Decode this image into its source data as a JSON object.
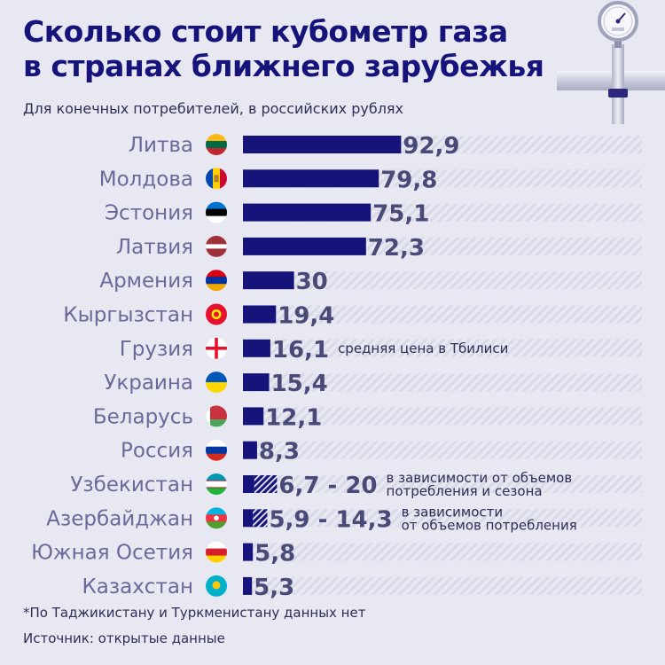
{
  "header": {
    "title_line1": "Сколько стоит кубометр газа",
    "title_line2": "в странах ближнего зарубежья",
    "subtitle": "Для конечных потребителей, в российских рублях"
  },
  "footnote": "*По Таджикистану и Туркменистану данных нет",
  "source": "Источник: открытые данные",
  "colors": {
    "bar": "#16147a",
    "country_label": "#6a6a9a",
    "value_label": "#4a4a78",
    "note_text": "#2e2e55",
    "track_stripe": "#d9dae8",
    "background": "#e7e8f2"
  },
  "chart_data": {
    "type": "bar",
    "orientation": "horizontal",
    "xlim": [
      0,
      100
    ],
    "grid": false,
    "rows": [
      {
        "category": "Литва",
        "flag": "lithuania-flag",
        "value": 92.9,
        "label": "92,9",
        "note": []
      },
      {
        "category": "Молдова",
        "flag": "moldova-flag",
        "value": 79.8,
        "label": "79,8",
        "note": []
      },
      {
        "category": "Эстония",
        "flag": "estonia-flag",
        "value": 75.1,
        "label": "75,1",
        "note": []
      },
      {
        "category": "Латвия",
        "flag": "latvia-flag",
        "value": 72.3,
        "label": "72,3",
        "note": []
      },
      {
        "category": "Армения",
        "flag": "armenia-flag",
        "value": 30,
        "label": "30",
        "note": []
      },
      {
        "category": "Кыргызстан",
        "flag": "kyrgyzstan-flag",
        "value": 19.4,
        "label": "19,4",
        "note": []
      },
      {
        "category": "Грузия",
        "flag": "georgia-flag",
        "value": 16.1,
        "label": "16,1",
        "note": [
          "средняя цена в Тбилиси"
        ]
      },
      {
        "category": "Украина",
        "flag": "ukraine-flag",
        "value": 15.4,
        "label": "15,4",
        "note": []
      },
      {
        "category": "Беларусь",
        "flag": "belarus-flag",
        "value": 12.1,
        "label": "12,1",
        "note": []
      },
      {
        "category": "Россия",
        "flag": "russia-flag",
        "value": 8.3,
        "label": "8,3",
        "note": []
      },
      {
        "category": "Узбекистан",
        "flag": "uzbekistan-flag",
        "value": 6.7,
        "value_max": 20,
        "label": "6,7 - 20",
        "note": [
          "в зависимости от объемов",
          "потребления и сезона"
        ]
      },
      {
        "category": "Азербайджан",
        "flag": "azerbaijan-flag",
        "value": 5.9,
        "value_max": 14.3,
        "label": "5,9 - 14,3",
        "note": [
          "в зависимости",
          "от объемов потребления"
        ]
      },
      {
        "category": "Южная Осетия",
        "flag": "south-ossetia-flag",
        "value": 5.8,
        "label": "5,8",
        "note": []
      },
      {
        "category": "Казахстан",
        "flag": "kazakhstan-flag",
        "value": 5.3,
        "label": "5,3",
        "note": []
      }
    ]
  }
}
